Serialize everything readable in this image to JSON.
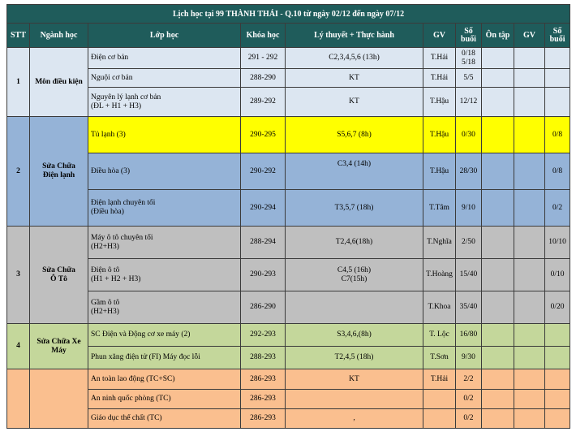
{
  "title": "Lịch học tại 99 THÀNH THÁI - Q.10 từ ngày 02/12 đến ngày 07/12",
  "headers": [
    "STT",
    "Ngành học",
    "Lớp học",
    "Khóa học",
    "Lý thuyết + Thực hành",
    "GV",
    "Số buổi",
    "Ôn tập",
    "GV",
    "Số buổi"
  ],
  "groups": [
    {
      "stt": "1",
      "major": "Môn điều kiện",
      "color": "#dce6f1",
      "rows": [
        {
          "class": "Điện cơ bản",
          "course": "291 - 292",
          "schedule": "C2,3,4,5,6 (13h)",
          "teacher": "T.Hải",
          "sessions": "0/18\n5/18",
          "review": "",
          "gv2": "",
          "sessions2": "",
          "h": 26
        },
        {
          "class": "Nguội cơ bản",
          "course": "288-290",
          "schedule": "KT",
          "teacher": "T.Hải",
          "sessions": "5/5",
          "review": "",
          "gv2": "",
          "sessions2": "",
          "h": 23
        },
        {
          "class": "Nguyên lý lạnh cơ bản\n(ĐL + H1 + H3)",
          "course": "289-292",
          "schedule": "KT",
          "teacher": "T.Hậu",
          "sessions": "12/12",
          "review": "",
          "gv2": "",
          "sessions2": "",
          "h": 36
        }
      ]
    },
    {
      "stt": "2",
      "major": "Sửa Chữa\nĐiện lạnh",
      "color": "#95b3d7",
      "rows": [
        {
          "class": "Tủ lạnh (3)",
          "course": "290-295",
          "schedule": "S5,6,7 (8h)",
          "teacher": "T.Hậu",
          "sessions": "0/30",
          "review": "",
          "gv2": "",
          "sessions2": "0/8",
          "h": 45,
          "highlight": "#ffff00"
        },
        {
          "class": "Điều hòa (3)",
          "course": "290-292",
          "schedule": "C3,4 (14h)",
          "teacher": "T.Hậu",
          "sessions": "28/30",
          "review": "",
          "gv2": "",
          "sessions2": "0/8",
          "h": 45,
          "scheduleTop": true
        },
        {
          "class": "Điện lạnh chuyên tối\n(Điều hòa)",
          "course": "290-294",
          "schedule": "T3,5,7 (18h)",
          "teacher": "T.Tâm",
          "sessions": "9/10",
          "review": "",
          "gv2": "",
          "sessions2": "0/2",
          "h": 45
        }
      ]
    },
    {
      "stt": "3",
      "major": "Sửa Chữa\nÔ Tô",
      "color": "#bfbfbf",
      "rows": [
        {
          "class": "Máy ô tô chuyên tối\n(H2+H3)",
          "course": "288-294",
          "schedule": "T2,4,6(18h)",
          "teacher": "T.Nghĩa",
          "sessions": "2/50",
          "review": "",
          "gv2": "",
          "sessions2": "10/10",
          "h": 40
        },
        {
          "class": "Điện ô tô\n(H1 + H2 + H3)",
          "course": "290-293",
          "schedule": "C4,5 (16h)\nC7(15h)",
          "teacher": "T.Hoàng",
          "sessions": "15/40",
          "review": "",
          "gv2": "",
          "sessions2": "0/10",
          "h": 40
        },
        {
          "class": "Gầm ô tô\n(H2+H3)",
          "course": "286-290",
          "schedule": "",
          "teacher": "T.Khoa",
          "sessions": "35/40",
          "review": "",
          "gv2": "",
          "sessions2": "0/20",
          "h": 40
        }
      ]
    },
    {
      "stt": "4",
      "major": "Sửa Chữa Xe\nMáy",
      "color": "#c4d79b",
      "rows": [
        {
          "class": "SC Điện và Động cơ xe máy (2)",
          "course": "292-293",
          "schedule": "S3,4,6,(8h)",
          "teacher": "T. Lộc",
          "sessions": "16/80",
          "review": "",
          "gv2": "",
          "sessions2": "",
          "h": 28
        },
        {
          "class": "Phun xăng điện tử (FI)     Máy đọc lỗi",
          "course": "288-293",
          "schedule": "T2,4,5 (18h)",
          "teacher": "T.Sơn",
          "sessions": "9/30",
          "review": "",
          "gv2": "",
          "sessions2": "",
          "h": 28
        }
      ]
    },
    {
      "stt": "",
      "major": "",
      "color": "#fabf8f",
      "rows": [
        {
          "class": "An toàn lao động (TC+SC)",
          "course": "286-293",
          "schedule": "KT",
          "teacher": "T.Hải",
          "sessions": "2/2",
          "review": "",
          "gv2": "",
          "sessions2": "",
          "h": 25
        },
        {
          "class": "An ninh quốc phòng (TC)",
          "course": "286-293",
          "schedule": "",
          "teacher": "",
          "sessions": "0/2",
          "review": "",
          "gv2": "",
          "sessions2": "",
          "h": 24
        },
        {
          "class": "Giáo dục thể chất (TC)",
          "course": "286-293",
          "schedule": ",",
          "teacher": "",
          "sessions": "0/2",
          "review": "",
          "gv2": "",
          "sessions2": "",
          "h": 24
        }
      ]
    }
  ]
}
